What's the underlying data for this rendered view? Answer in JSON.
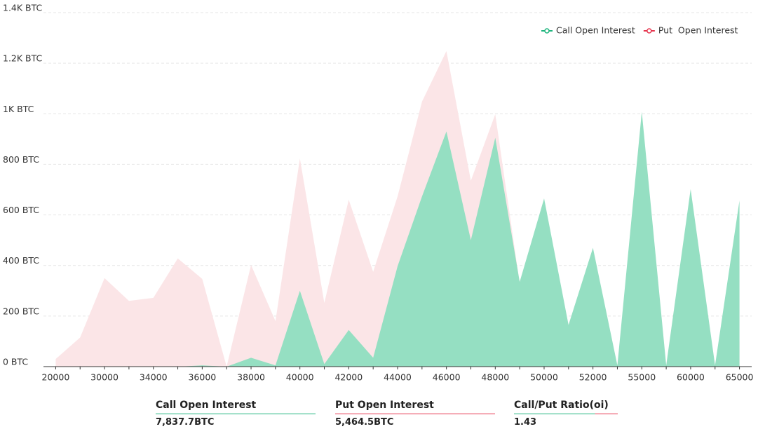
{
  "chart_data": {
    "type": "area",
    "categories": [
      20000,
      null,
      30000,
      null,
      34000,
      null,
      36000,
      null,
      38000,
      null,
      40000,
      null,
      42000,
      null,
      44000,
      null,
      46000,
      null,
      48000,
      null,
      50000,
      null,
      52000,
      null,
      55000,
      null,
      60000,
      null,
      65000
    ],
    "series": [
      {
        "name": "Put  Open Interest",
        "color": "#e6364f",
        "fill": "#fbe5e7",
        "values": [
          30,
          115,
          350,
          260,
          272,
          428,
          347,
          0,
          402,
          180,
          823,
          252,
          660,
          375,
          673,
          1048,
          1248,
          735,
          998,
          330,
          200,
          100,
          150,
          0,
          100,
          0,
          150,
          0,
          100
        ]
      },
      {
        "name": "Call Open Interest",
        "color": "#1fb57e",
        "fill": "#95dfc2",
        "values": [
          0,
          0,
          0,
          0,
          0,
          0,
          5,
          0,
          35,
          5,
          300,
          10,
          145,
          35,
          397,
          673,
          930,
          500,
          905,
          335,
          665,
          165,
          470,
          5,
          1008,
          5,
          702,
          5,
          657
        ]
      }
    ],
    "ylim": [
      0,
      1400
    ],
    "yticks": [
      {
        "value": 0,
        "label": "0 BTC"
      },
      {
        "value": 200,
        "label": "200 BTC"
      },
      {
        "value": 400,
        "label": "400 BTC"
      },
      {
        "value": 600,
        "label": "600 BTC"
      },
      {
        "value": 800,
        "label": "800 BTC"
      },
      {
        "value": 1000,
        "label": "1K BTC"
      },
      {
        "value": 1200,
        "label": "1.2K BTC"
      },
      {
        "value": 1400,
        "label": "1.4K BTC"
      }
    ],
    "grid": true,
    "legend": "top-right"
  },
  "stats": [
    {
      "label": "Call Open Interest",
      "value": "7,837.7BTC"
    },
    {
      "label": "Put Open Interest",
      "value": "5,464.5BTC"
    },
    {
      "label": "Call/Put Ratio(oi)",
      "value": "1.43"
    }
  ]
}
